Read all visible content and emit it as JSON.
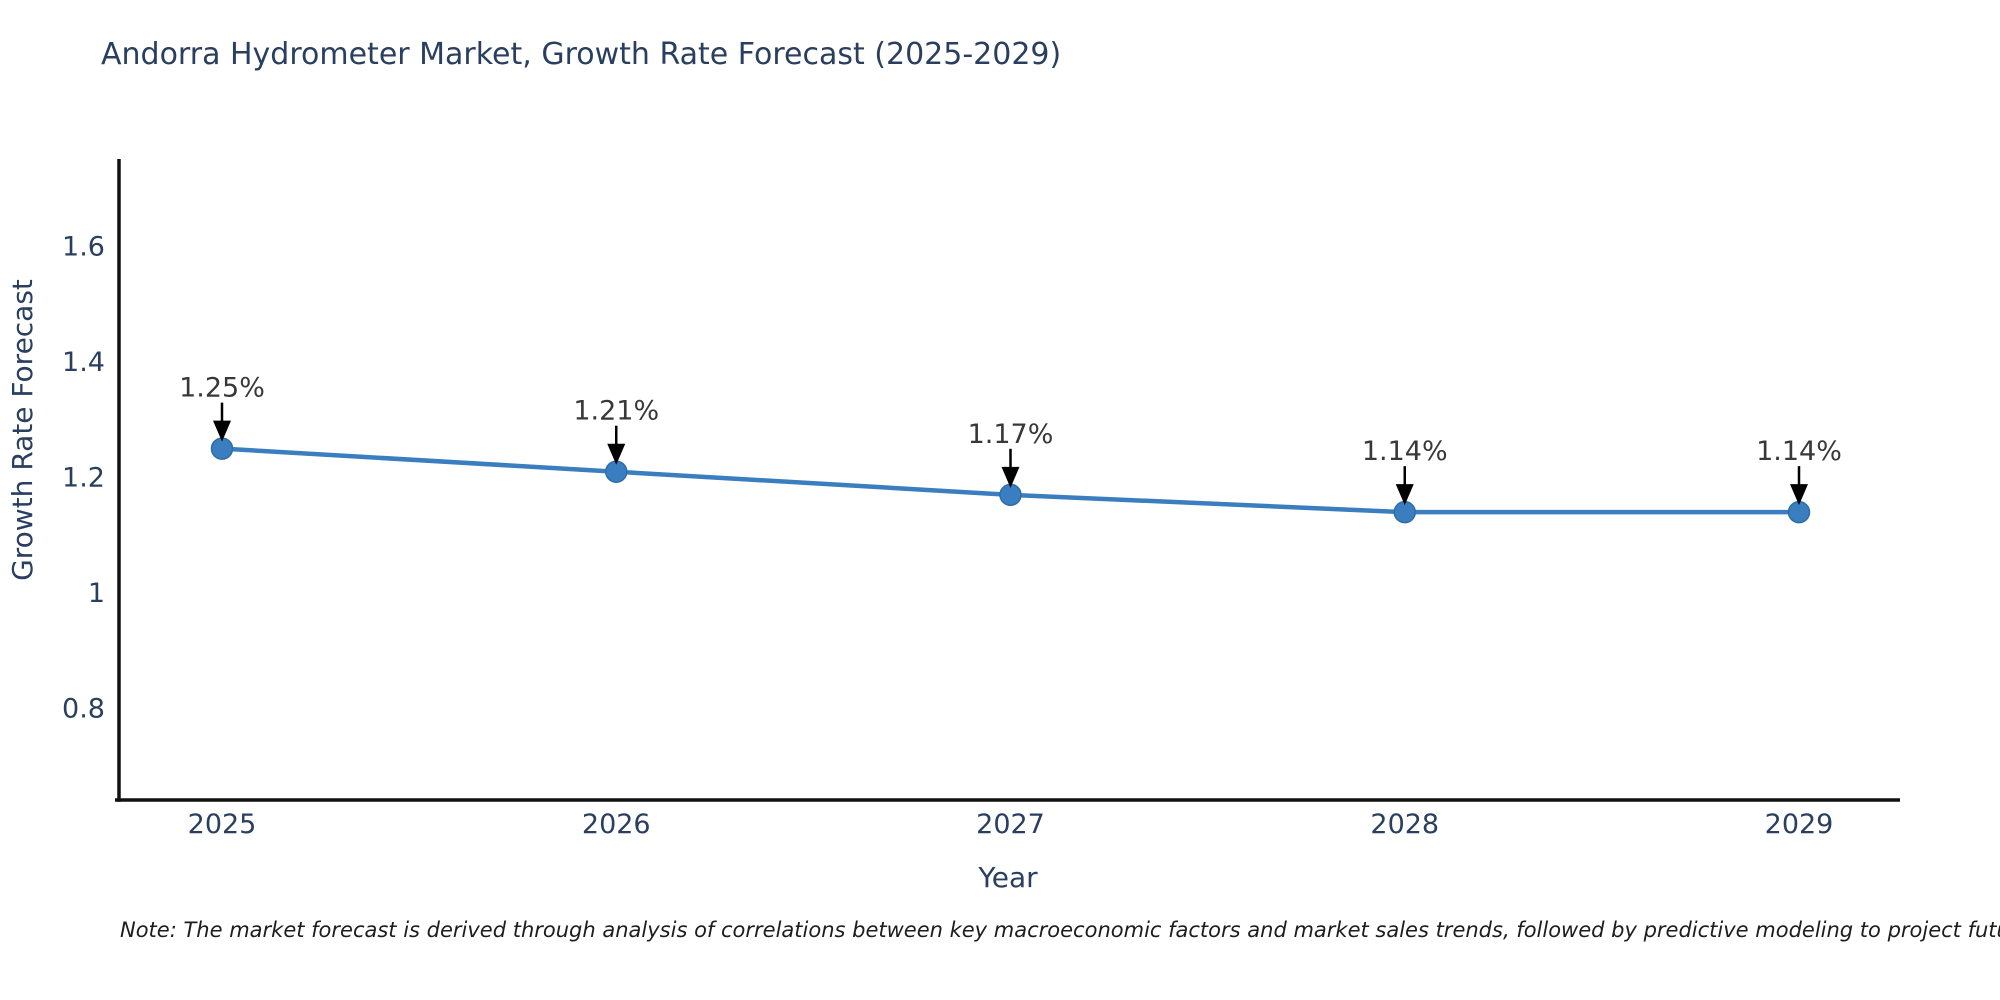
{
  "title": "Andorra Hydrometer Market, Growth Rate Forecast (2025-2029)",
  "note": "Note: The market forecast is derived through analysis of correlations between key macroeconomic factors and market sales trends, followed by predictive modeling to project future sales",
  "colors": {
    "line": "#3a7ebf",
    "marker_fill": "#3a7ebf",
    "marker_edge": "#2f6da8",
    "axis_line": "#111111",
    "axis_text": "#2a3f5f",
    "annotation_text": "#383838",
    "arrow": "#000000",
    "background": "#ffffff"
  },
  "chart_data": {
    "type": "line",
    "x": [
      2025,
      2026,
      2027,
      2028,
      2029
    ],
    "x_tick_labels": [
      "2025",
      "2026",
      "2027",
      "2028",
      "2029"
    ],
    "series": [
      {
        "name": "Growth Rate Forecast",
        "values": [
          1.25,
          1.21,
          1.17,
          1.14,
          1.14
        ]
      }
    ],
    "point_labels": [
      "1.25%",
      "1.21%",
      "1.17%",
      "1.14%",
      "1.14%"
    ],
    "title": "Andorra Hydrometer Market, Growth Rate Forecast (2025-2029)",
    "xlabel": "Year",
    "ylabel": "Growth Rate Forecast",
    "y_ticks": [
      0.8,
      1,
      1.2,
      1.4,
      1.6
    ],
    "y_tick_labels": [
      "0.8",
      "1",
      "1.2",
      "1.4",
      "1.6"
    ],
    "ylim": [
      0.64,
      1.75
    ],
    "xlim": [
      2024.73,
      2029.26
    ],
    "grid": false,
    "legend": false,
    "markers": true,
    "annotations": "value labels with downward arrows above each point"
  }
}
